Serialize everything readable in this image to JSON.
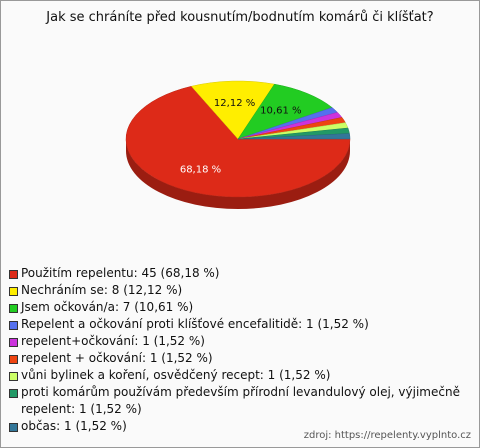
{
  "chart_data": {
    "type": "pie",
    "title": "Jak se chráníte před kousnutím/bodnutím komárů či klíšťat?",
    "categories": [
      "Použitím repelentu: 45 (68,18 %)",
      "Nechráním se: 8 (12,12 %)",
      "Jsem očkován/a: 7 (10,61 %)",
      "Repelent a očkování proti klíšťové encefalitidě: 1 (1,52 %)",
      "repelent+očkování: 1 (1,52 %)",
      "repelent + očkování: 1 (1,52 %)",
      "vůni bylinek a koření, osvědčený recept: 1 (1,52 %)",
      "proti komárům používám především přírodní levandulový olej, výjimečně repelent: 1 (1,52 %)",
      "občas: 1 (1,52 %)"
    ],
    "values": [
      68.18,
      12.12,
      10.61,
      1.52,
      1.52,
      1.52,
      1.52,
      1.52,
      1.52
    ],
    "value_labels": [
      "68,18 %",
      "12,12 %",
      "10,61 %",
      null,
      null,
      null,
      null,
      null,
      null
    ],
    "colors": [
      "#dd2a18",
      "#ffee00",
      "#22cc22",
      "#5570ee",
      "#cc33dd",
      "#ee4411",
      "#ccff66",
      "#229966",
      "#337799"
    ],
    "source": "zdroj: https://repelenty.vyplnto.cz"
  }
}
